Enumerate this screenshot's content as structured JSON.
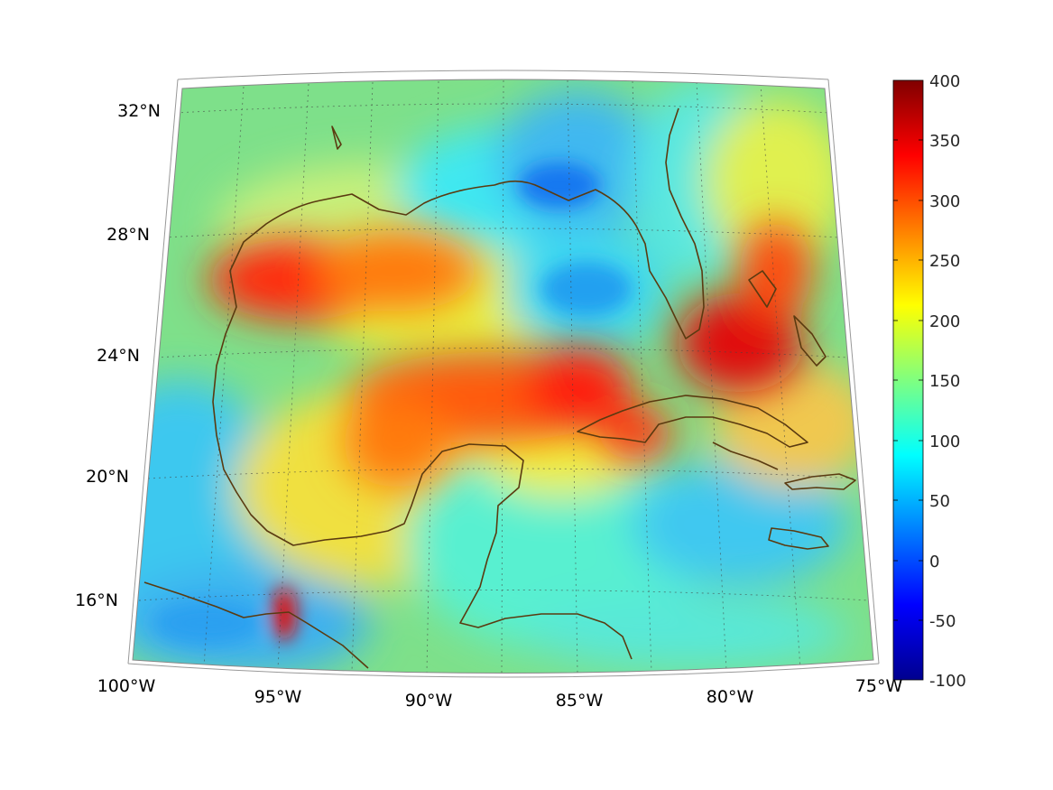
{
  "map": {
    "longitude_labels": [
      "100°W",
      "95°W",
      "90°W",
      "85°W",
      "80°W",
      "75°W"
    ],
    "latitude_labels": [
      "32°N",
      "28°N",
      "24°N",
      "20°N",
      "16°N"
    ],
    "extent": {
      "lon_min": -100,
      "lon_max": -75,
      "lat_min": 14,
      "lat_max": 32.7
    },
    "projection": "lambert-conformal-like conic",
    "coastline_color": "#5a3a10",
    "graticule_style": "dotted gray"
  },
  "colorbar": {
    "colormap": "jet",
    "min": -100,
    "max": 400,
    "ticks": [
      "400",
      "350",
      "300",
      "250",
      "200",
      "150",
      "100",
      "50",
      "0",
      "-50",
      "-100"
    ]
  },
  "field_features": [
    {
      "region": "western Gulf near 26.5°N 95°W",
      "level": 310
    },
    {
      "region": "central Gulf band 22-24°N 84-91°W",
      "level": 300
    },
    {
      "region": "Florida Straits / Bahamas 24-27°N 78-81°W",
      "level": 340
    },
    {
      "region": "Bay of Campeche 15.5°N 95°W",
      "level": 330
    },
    {
      "region": "eastern Gulf 25.5°N 86°W",
      "level": 60
    },
    {
      "region": "northeastern Gulf 30°N 85°W",
      "level": 40
    },
    {
      "region": "Pacific coast south of Mexico 15°N 98°W",
      "level": 50
    }
  ]
}
